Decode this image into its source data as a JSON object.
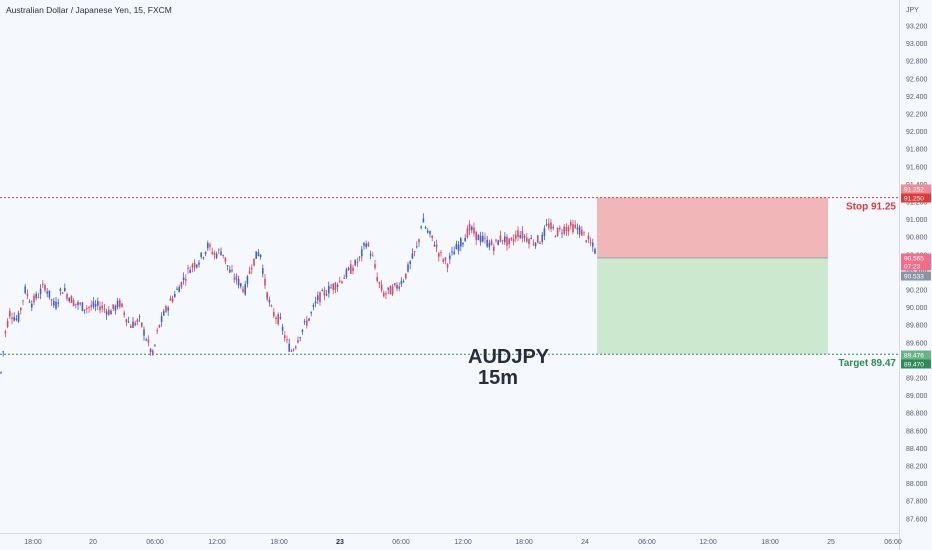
{
  "header": {
    "title": "Australian Dollar / Japanese Yen, 15, FXCM"
  },
  "chart_data": {
    "type": "candlestick",
    "title": "Australian Dollar / Japanese Yen, 15, FXCM",
    "y_axis": {
      "unit": "JPY",
      "range": [
        87.5,
        93.3
      ],
      "ticks": [
        "93.200",
        "93.000",
        "92.800",
        "92.600",
        "92.400",
        "92.200",
        "92.000",
        "91.800",
        "91.600",
        "91.400",
        "91.200",
        "91.000",
        "90.800",
        "90.600",
        "90.400",
        "90.200",
        "90.000",
        "89.800",
        "89.600",
        "89.400",
        "89.200",
        "89.000",
        "88.800",
        "88.600",
        "88.400",
        "88.200",
        "88.000",
        "87.800",
        "87.600"
      ]
    },
    "x_axis": {
      "labels": [
        {
          "text": "18:00",
          "bold": false
        },
        {
          "text": "20",
          "bold": false
        },
        {
          "text": "06:00",
          "bold": false
        },
        {
          "text": "12:00",
          "bold": false
        },
        {
          "text": "18:00",
          "bold": false
        },
        {
          "text": "23",
          "bold": true
        },
        {
          "text": "06:00",
          "bold": false
        },
        {
          "text": "12:00",
          "bold": false
        },
        {
          "text": "18:00",
          "bold": false
        },
        {
          "text": "24",
          "bold": false
        },
        {
          "text": "06:00",
          "bold": false
        },
        {
          "text": "12:00",
          "bold": false
        },
        {
          "text": "18:00",
          "bold": false
        },
        {
          "text": "25",
          "bold": false
        },
        {
          "text": "06:00",
          "bold": false
        }
      ]
    },
    "series_path": [
      [
        0,
        89.15
      ],
      [
        5,
        89.7
      ],
      [
        10,
        89.95
      ],
      [
        18,
        89.85
      ],
      [
        25,
        90.2
      ],
      [
        32,
        90.05
      ],
      [
        45,
        90.25
      ],
      [
        55,
        90.0
      ],
      [
        62,
        90.22
      ],
      [
        75,
        90.05
      ],
      [
        85,
        90.0
      ],
      [
        100,
        90.02
      ],
      [
        110,
        89.95
      ],
      [
        120,
        90.05
      ],
      [
        130,
        89.8
      ],
      [
        140,
        89.85
      ],
      [
        148,
        89.6
      ],
      [
        153,
        89.45
      ],
      [
        158,
        89.75
      ],
      [
        165,
        89.95
      ],
      [
        172,
        90.1
      ],
      [
        180,
        90.25
      ],
      [
        190,
        90.45
      ],
      [
        200,
        90.55
      ],
      [
        208,
        90.7
      ],
      [
        215,
        90.6
      ],
      [
        222,
        90.65
      ],
      [
        230,
        90.4
      ],
      [
        238,
        90.3
      ],
      [
        245,
        90.2
      ],
      [
        252,
        90.5
      ],
      [
        260,
        90.65
      ],
      [
        266,
        90.2
      ],
      [
        272,
        89.95
      ],
      [
        280,
        89.85
      ],
      [
        287,
        89.6
      ],
      [
        292,
        89.5
      ],
      [
        300,
        89.7
      ],
      [
        310,
        89.9
      ],
      [
        318,
        90.1
      ],
      [
        328,
        90.2
      ],
      [
        340,
        90.3
      ],
      [
        352,
        90.45
      ],
      [
        360,
        90.55
      ],
      [
        366,
        90.75
      ],
      [
        372,
        90.6
      ],
      [
        378,
        90.3
      ],
      [
        384,
        90.15
      ],
      [
        392,
        90.2
      ],
      [
        398,
        90.25
      ],
      [
        405,
        90.35
      ],
      [
        412,
        90.55
      ],
      [
        418,
        90.7
      ],
      [
        422,
        91.0
      ],
      [
        428,
        90.85
      ],
      [
        434,
        90.75
      ],
      [
        440,
        90.6
      ],
      [
        447,
        90.5
      ],
      [
        455,
        90.65
      ],
      [
        462,
        90.75
      ],
      [
        470,
        90.9
      ],
      [
        478,
        90.8
      ],
      [
        486,
        90.75
      ],
      [
        494,
        90.7
      ],
      [
        502,
        90.8
      ],
      [
        510,
        90.72
      ],
      [
        518,
        90.85
      ],
      [
        526,
        90.8
      ],
      [
        534,
        90.75
      ],
      [
        542,
        90.78
      ],
      [
        548,
        90.95
      ],
      [
        556,
        90.85
      ],
      [
        564,
        90.9
      ],
      [
        572,
        90.92
      ],
      [
        580,
        90.88
      ],
      [
        586,
        90.8
      ],
      [
        592,
        90.7
      ],
      [
        598,
        90.6
      ]
    ],
    "trade": {
      "entry": 90.565,
      "stop": 91.25,
      "target": 89.47,
      "stop_label": "Stop 91.25",
      "target_label": "Target 89.47",
      "price_tags": {
        "stop_above": "91.252",
        "stop": "91.250",
        "current": "90.565",
        "countdown": "07:23",
        "current_low": "90.533",
        "target_above": "89.476",
        "target": "89.470"
      }
    },
    "watermark": [
      "AUDJPY",
      "15m"
    ],
    "colors": {
      "up": "#3f5fd6",
      "down": "#e0475e",
      "stop_zone": "#f0b6b8",
      "target_zone": "#cce8cf",
      "stop": "#e03a3a",
      "target": "#2e8b57",
      "price_tag": "#f36d8b"
    }
  }
}
